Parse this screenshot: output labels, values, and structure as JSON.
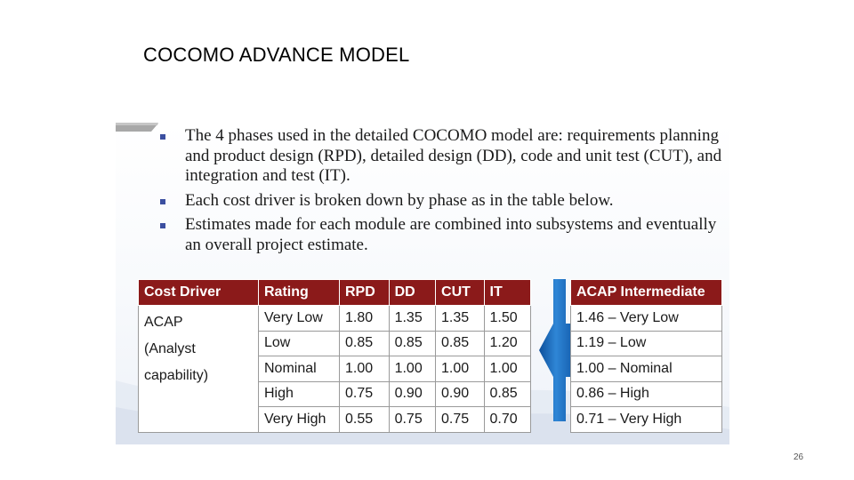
{
  "slide": {
    "title": "COCOMO ADVANCE MODEL",
    "page_number": "26",
    "bullets": [
      "The 4 phases used in the detailed COCOMO model are: requirements planning and product design (RPD), detailed design (DD), code and unit test (CUT), and integration and test (IT).",
      "Each cost driver is broken down by phase as in the table below.",
      "Estimates made for each module are combined into subsystems and eventually an overall project estimate."
    ],
    "cost_table": {
      "headers": [
        "Cost Driver",
        "Rating",
        "RPD",
        "DD",
        "CUT",
        "IT"
      ],
      "driver_lines": [
        "ACAP",
        "(Analyst",
        "capability)"
      ],
      "rows": [
        {
          "rating": "Very Low",
          "rpd": "1.80",
          "dd": "1.35",
          "cut": "1.35",
          "it": "1.50"
        },
        {
          "rating": "Low",
          "rpd": "0.85",
          "dd": "0.85",
          "cut": "0.85",
          "it": "1.20"
        },
        {
          "rating": "Nominal",
          "rpd": "1.00",
          "dd": "1.00",
          "cut": "1.00",
          "it": "1.00"
        },
        {
          "rating": "High",
          "rpd": "0.75",
          "dd": "0.90",
          "cut": "0.90",
          "it": "0.85"
        },
        {
          "rating": "Very High",
          "rpd": "0.55",
          "dd": "0.75",
          "cut": "0.75",
          "it": "0.70"
        }
      ]
    },
    "intermediate_table": {
      "header": "ACAP Intermediate",
      "rows": [
        "1.46 – Very Low",
        "1.19 – Low",
        "1.00 – Nominal",
        "0.86 – High",
        "0.71 – Very High"
      ]
    },
    "colors": {
      "header_bg": "#8b1a1a",
      "arrow_blue": "#1f6fc0",
      "bullet_mark": "#3b4fa0"
    },
    "icons": {
      "arrow": "left-arrow-icon",
      "bullet": "square-bullet-icon"
    }
  }
}
